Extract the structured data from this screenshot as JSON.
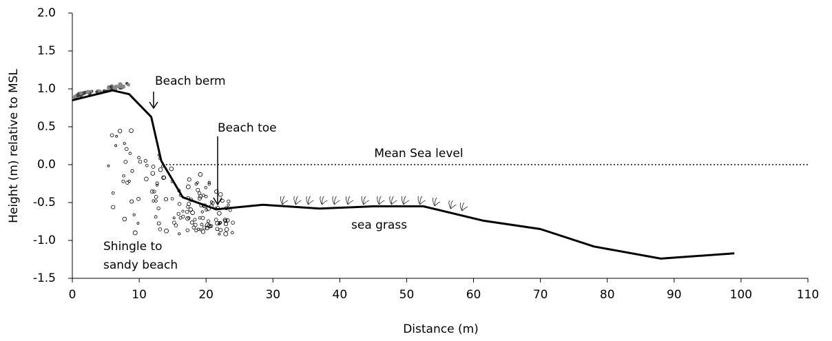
{
  "chart_data": {
    "type": "line",
    "x_label": "Distance (m)",
    "y_label": "Height (m) relative to MSL",
    "xlim": [
      0,
      110
    ],
    "xticks": [
      0,
      10,
      20,
      30,
      40,
      50,
      60,
      70,
      80,
      90,
      100,
      110
    ],
    "ylim": [
      -1.5,
      2.0
    ],
    "yticks": [
      {
        "value": -1.5,
        "label": "-1.5"
      },
      {
        "value": -1.0,
        "label": "-1.0"
      },
      {
        "value": -0.5,
        "label": "-0.5"
      },
      {
        "value": 0,
        "label": "0.0"
      },
      {
        "value": 0.5,
        "label": "0.5"
      },
      {
        "value": 1.0,
        "label": "1.0"
      },
      {
        "value": 1.5,
        "label": "1.5"
      },
      {
        "value": 2.0,
        "label": "2.0"
      }
    ],
    "series": [
      {
        "color": "#000000",
        "x": [
          0,
          6,
          8.5,
          11.8,
          13.3,
          16.5,
          21.5,
          28.5,
          37,
          45,
          52.5,
          61.5,
          70,
          78,
          88,
          99
        ],
        "values": [
          0.85,
          0.98,
          0.93,
          0.63,
          0.05,
          -0.43,
          -0.59,
          -0.53,
          -0.58,
          -0.55,
          -0.55,
          -0.74,
          -0.85,
          -1.08,
          -1.24,
          -1.17
        ]
      }
    ],
    "reference_line": {
      "y": 0,
      "x_start": 14,
      "label": "Mean Sea level"
    },
    "annotations": {
      "beach_berm": "Beach berm",
      "beach_toe": "Beach toe",
      "sea_grass": "sea grass",
      "shingle": [
        "Shingle to",
        "sandy beach"
      ]
    }
  }
}
